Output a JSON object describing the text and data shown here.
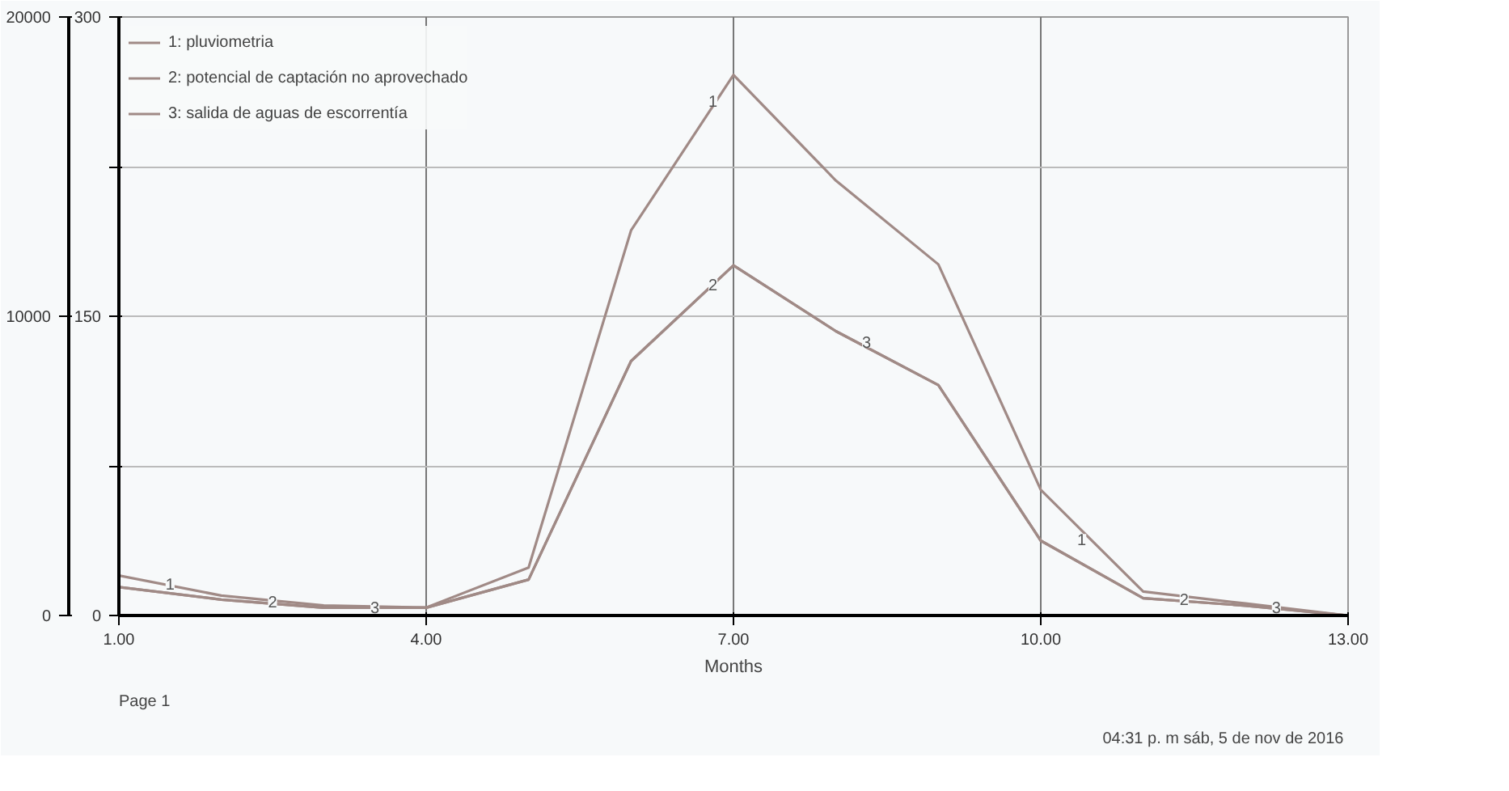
{
  "chart_data": {
    "type": "line",
    "xlabel": "Months",
    "x": [
      1,
      2,
      3,
      4,
      5,
      6,
      7,
      8,
      9,
      10,
      11,
      12,
      13
    ],
    "series": [
      {
        "name": "1: pluviometria",
        "color": "#a08a86",
        "values": [
          20,
          10,
          5,
          4,
          24,
          193,
          271,
          218,
          176,
          63,
          12,
          6,
          0
        ]
      },
      {
        "name": "2: potencial de captación no aprovechado",
        "color": "#a08a86",
        "axis": "y2",
        "values": [
          950,
          530,
          260,
          260,
          1200,
          8500,
          11700,
          9500,
          7700,
          2500,
          580,
          330,
          0
        ]
      },
      {
        "name": "3: salida de aguas de escorrentía",
        "color": "#a08a86",
        "axis": "y2",
        "values": [
          950,
          530,
          260,
          260,
          1200,
          8500,
          11700,
          9500,
          7700,
          2500,
          580,
          330,
          0
        ]
      }
    ],
    "xlim": [
      1,
      13
    ],
    "xticks": [
      {
        "value": 1,
        "label": "1.00"
      },
      {
        "value": 4,
        "label": "4.00"
      },
      {
        "value": 7,
        "label": "7.00"
      },
      {
        "value": 10,
        "label": "10.00"
      },
      {
        "value": 13,
        "label": "13.00"
      }
    ],
    "ylim": [
      0,
      300
    ],
    "yticks": [
      0,
      {
        "value": 75,
        "label": null
      },
      150,
      {
        "value": 225,
        "label": null
      },
      300
    ],
    "y2lim": [
      0,
      20000
    ],
    "y2ticks": [
      0,
      10000,
      20000
    ],
    "grid": true,
    "legend": "top left",
    "marker": "none",
    "line_style": "solid",
    "annotations": [
      {
        "text": "1",
        "x": 1.5,
        "y": 16
      },
      {
        "text": "2",
        "x": 2.5,
        "y": 7
      },
      {
        "text": "3",
        "x": 3.5,
        "y": 4
      },
      {
        "text": "1",
        "x": 6.8,
        "y": 258
      },
      {
        "text": "2",
        "x": 6.8,
        "y": 166
      },
      {
        "text": "3",
        "x": 8.3,
        "y": 137
      },
      {
        "text": "1",
        "x": 10.4,
        "y": 38
      },
      {
        "text": "2",
        "x": 11.4,
        "y": 8
      },
      {
        "text": "3",
        "x": 12.3,
        "y": 4
      },
      "Page 1",
      "04:31 p. m  sáb, 5 de nov de 2016"
    ]
  }
}
